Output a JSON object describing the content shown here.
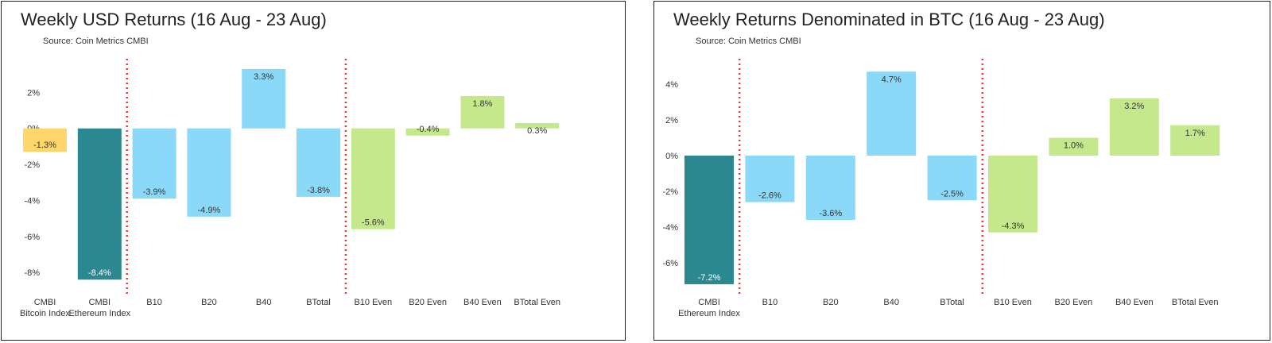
{
  "panels": [
    {
      "title": "Weekly USD Returns (16 Aug - 23 Aug)",
      "source": "Source: Coin Metrics CMBI"
    },
    {
      "title": "Weekly Returns Denominated in BTC (16 Aug - 23 Aug)",
      "source": "Source: Coin Metrics CMBI"
    }
  ],
  "colors": {
    "bitcoin": "#ffd66b",
    "ethereum": "#2b8891",
    "market_cap": "#8ad9f8",
    "even": "#c5e88c",
    "divider": "#e23c3c"
  },
  "chart_data": [
    {
      "type": "bar",
      "title": "Weekly USD Returns (16 Aug - 23 Aug)",
      "xlabel": "",
      "ylabel": "",
      "ylim": [
        -9,
        3.5
      ],
      "yticks": [
        2,
        0,
        -2,
        -4,
        -6,
        -8
      ],
      "ytick_labels": [
        "2%",
        "0%",
        "-2%",
        "-4%",
        "-6%",
        "-8%"
      ],
      "categories": [
        "CMBI Bitcoin Index",
        "CMBI Ethereum Index",
        "B10",
        "B20",
        "B40",
        "BTotal",
        "B10 Even",
        "B20 Even",
        "B40 Even",
        "BTotal Even"
      ],
      "category_lines": [
        [
          "CMBI",
          "Bitcoin Index"
        ],
        [
          "CMBI",
          "Ethereum Index"
        ],
        [
          "B10"
        ],
        [
          "B20"
        ],
        [
          "B40"
        ],
        [
          "BTotal"
        ],
        [
          "B10 Even"
        ],
        [
          "B20 Even"
        ],
        [
          "B40 Even"
        ],
        [
          "BTotal Even"
        ]
      ],
      "values": [
        -1.3,
        -8.4,
        -3.9,
        -4.9,
        3.3,
        -3.8,
        -5.6,
        -0.4,
        1.8,
        0.3
      ],
      "value_labels": [
        "-1.3%",
        "-8.4%",
        "-3.9%",
        "-4.9%",
        "3.3%",
        "-3.8%",
        "-5.6%",
        "-0.4%",
        "1.8%",
        "0.3%"
      ],
      "color_groups": [
        "bitcoin",
        "ethereum",
        "market_cap",
        "market_cap",
        "market_cap",
        "market_cap",
        "even",
        "even",
        "even",
        "even"
      ],
      "dividers_after": [
        1,
        5
      ],
      "grid": false,
      "legend": "none"
    },
    {
      "type": "bar",
      "title": "Weekly Returns Denominated in BTC (16 Aug - 23 Aug)",
      "xlabel": "",
      "ylabel": "",
      "ylim": [
        -7.5,
        5
      ],
      "yticks": [
        4,
        2,
        0,
        -2,
        -4,
        -6
      ],
      "ytick_labels": [
        "4%",
        "2%",
        "0%",
        "-2%",
        "-4%",
        "-6%"
      ],
      "categories": [
        "CMBI Ethereum Index",
        "B10",
        "B20",
        "B40",
        "BTotal",
        "B10 Even",
        "B20 Even",
        "B40 Even",
        "BTotal Even"
      ],
      "category_lines": [
        [
          "CMBI",
          "Ethereum Index"
        ],
        [
          "B10"
        ],
        [
          "B20"
        ],
        [
          "B40"
        ],
        [
          "BTotal"
        ],
        [
          "B10 Even"
        ],
        [
          "B20 Even"
        ],
        [
          "B40 Even"
        ],
        [
          "BTotal Even"
        ]
      ],
      "values": [
        -7.2,
        -2.6,
        -3.6,
        4.7,
        -2.5,
        -4.3,
        1.0,
        3.2,
        1.7
      ],
      "value_labels": [
        "-7.2%",
        "-2.6%",
        "-3.6%",
        "4.7%",
        "-2.5%",
        "-4.3%",
        "1.0%",
        "3.2%",
        "1.7%"
      ],
      "color_groups": [
        "ethereum",
        "market_cap",
        "market_cap",
        "market_cap",
        "market_cap",
        "even",
        "even",
        "even",
        "even"
      ],
      "dividers_after": [
        0,
        4
      ],
      "grid": false,
      "legend": "none"
    }
  ]
}
